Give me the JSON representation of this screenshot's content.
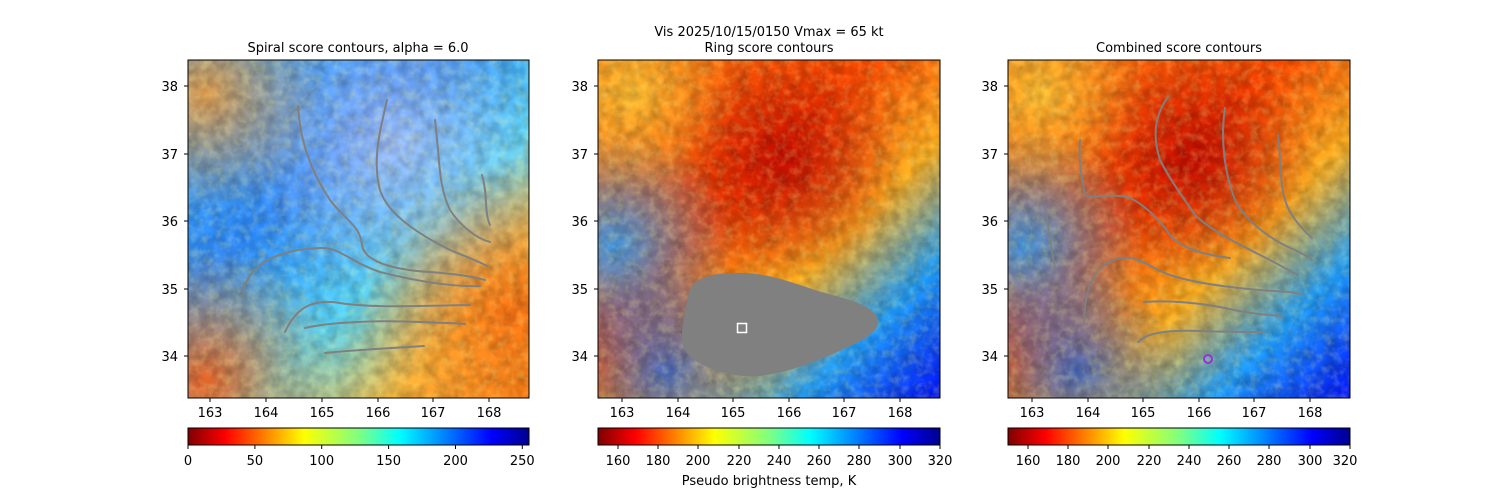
{
  "figure": {
    "suptitle_line1": "Vis  2025/10/15/0150    Vmax = 65 kt",
    "colorbar_label": "Pseudo brightness temp, K"
  },
  "chart_data": [
    {
      "type": "heatmap",
      "title": "Spiral score contours, alpha =  6.0",
      "xlim": [
        162.6,
        168.8
      ],
      "ylim": [
        33.4,
        38.4
      ],
      "xticks": [
        "163",
        "164",
        "165",
        "166",
        "167",
        "168"
      ],
      "yticks": [
        "34",
        "35",
        "36",
        "37",
        "38"
      ],
      "colormap": "jet_r",
      "colorbar": {
        "range": [
          0,
          255
        ],
        "ticks": [
          "0",
          "50",
          "100",
          "150",
          "200",
          "250"
        ]
      },
      "contour_color": "#808080"
    },
    {
      "type": "heatmap",
      "title": "Ring score contours",
      "xlim": [
        162.6,
        168.8
      ],
      "ylim": [
        33.4,
        38.4
      ],
      "xticks": [
        "163",
        "164",
        "165",
        "166",
        "167",
        "168"
      ],
      "yticks": [
        "34",
        "35",
        "36",
        "37",
        "38"
      ],
      "colormap": "jet_r",
      "colorbar": {
        "range": [
          150,
          320
        ],
        "ticks": [
          "160",
          "180",
          "200",
          "220",
          "240",
          "260",
          "280",
          "300",
          "320"
        ]
      },
      "mask_color": "#808080",
      "marker": {
        "shape": "square",
        "x": 165.2,
        "y": 34.4,
        "color": "#ffffff"
      }
    },
    {
      "type": "heatmap",
      "title": "Combined score contours",
      "xlim": [
        162.6,
        168.8
      ],
      "ylim": [
        33.4,
        38.4
      ],
      "xticks": [
        "163",
        "164",
        "165",
        "166",
        "167",
        "168"
      ],
      "yticks": [
        "34",
        "35",
        "36",
        "37",
        "38"
      ],
      "colormap": "jet_r",
      "colorbar": {
        "range": [
          150,
          320
        ],
        "ticks": [
          "160",
          "180",
          "200",
          "220",
          "240",
          "260",
          "280",
          "300",
          "320"
        ]
      },
      "contour_color": "#808080",
      "marker": {
        "shape": "circle",
        "x": 166.2,
        "y": 33.95,
        "color": "#9b30d0"
      }
    }
  ]
}
